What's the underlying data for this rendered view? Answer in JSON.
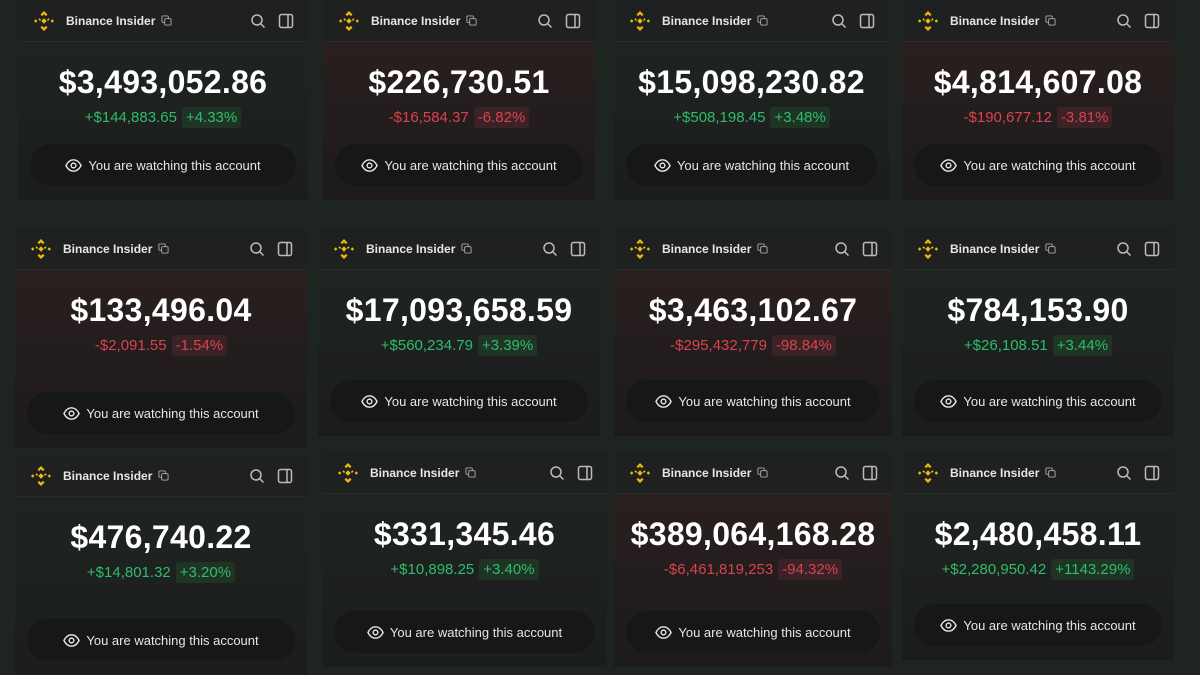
{
  "colors": {
    "brand": "#F0B90B",
    "positive": "#2EBD6B",
    "negative": "#D8434F",
    "background": "#1E2420"
  },
  "cards": [
    {
      "account": "Binance Insider",
      "balance": "$3,493,052.86",
      "change": "+$144,883.65",
      "percent": "+4.33%",
      "trend": "pos",
      "watch_label": "You are watching this account"
    },
    {
      "account": "Binance Insider",
      "balance": "$226,730.51",
      "change": "-$16,584.37",
      "percent": "-6.82%",
      "trend": "neg",
      "watch_label": "You are watching this account"
    },
    {
      "account": "Binance Insider",
      "balance": "$15,098,230.82",
      "change": "+$508,198.45",
      "percent": "+3.48%",
      "trend": "pos",
      "watch_label": "You are watching this account"
    },
    {
      "account": "Binance Insider",
      "balance": "$4,814,607.08",
      "change": "-$190,677.12",
      "percent": "-3.81%",
      "trend": "neg",
      "watch_label": "You are watching this account"
    },
    {
      "account": "Binance Insider",
      "balance": "$133,496.04",
      "change": "-$2,091.55",
      "percent": "-1.54%",
      "trend": "neg",
      "watch_label": "You are watching this account"
    },
    {
      "account": "Binance Insider",
      "balance": "$17,093,658.59",
      "change": "+$560,234.79",
      "percent": "+3.39%",
      "trend": "pos",
      "watch_label": "You are watching this account"
    },
    {
      "account": "Binance Insider",
      "balance": "$3,463,102.67",
      "change": "-$295,432,779",
      "percent": "-98.84%",
      "trend": "neg",
      "watch_label": "You are watching this account"
    },
    {
      "account": "Binance Insider",
      "balance": "$784,153.90",
      "change": "+$26,108.51",
      "percent": "+3.44%",
      "trend": "pos",
      "watch_label": "You are watching this account"
    },
    {
      "account": "Binance Insider",
      "balance": "$476,740.22",
      "change": "+$14,801.32",
      "percent": "+3.20%",
      "trend": "pos",
      "watch_label": "You are watching this account"
    },
    {
      "account": "Binance Insider",
      "balance": "$331,345.46",
      "change": "+$10,898.25",
      "percent": "+3.40%",
      "trend": "pos",
      "watch_label": "You are watching this account"
    },
    {
      "account": "Binance Insider",
      "balance": "$389,064,168.28",
      "change": "-$6,461,819,253",
      "percent": "-94.32%",
      "trend": "neg",
      "watch_label": "You are watching this account"
    },
    {
      "account": "Binance Insider",
      "balance": "$2,480,458.11",
      "change": "+$2,280,950.42",
      "percent": "+1143.29%",
      "trend": "pos",
      "watch_label": "You are watching this account"
    }
  ]
}
